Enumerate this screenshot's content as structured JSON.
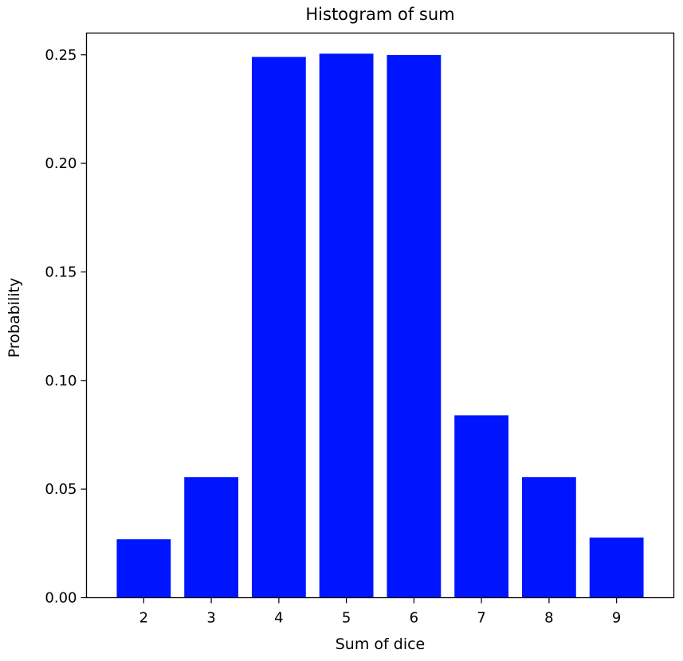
{
  "chart_data": {
    "type": "bar",
    "title": "Histogram of sum",
    "xlabel": "Sum of dice",
    "ylabel": "Probability",
    "categories": [
      "2",
      "3",
      "4",
      "5",
      "6",
      "7",
      "8",
      "9"
    ],
    "values": [
      0.0269,
      0.0555,
      0.249,
      0.2505,
      0.2499,
      0.084,
      0.0555,
      0.0277
    ],
    "ylim": [
      0,
      0.26
    ],
    "yticks": [
      0.0,
      0.05,
      0.1,
      0.15,
      0.2,
      0.25
    ],
    "ytick_labels": [
      "0.00",
      "0.05",
      "0.10",
      "0.15",
      "0.20",
      "0.25"
    ],
    "grid": false,
    "bar_color": "#0015ff",
    "axis_color": "#000000"
  }
}
